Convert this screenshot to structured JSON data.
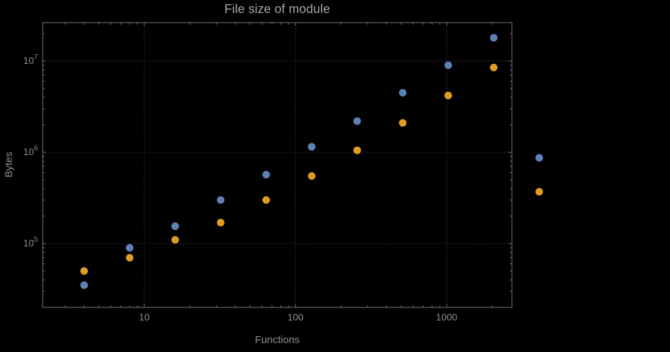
{
  "title": "File size of module",
  "colors": {
    "background": "#000000",
    "frame": "#7a7a7a",
    "grid": "#5f5f5f",
    "tick_label": "#8f8f8f",
    "title_text": "#a9a9a9",
    "series_blue": "#5e81b5",
    "series_orange": "#e19c24"
  },
  "chart_data": {
    "type": "scatter",
    "title": "File size of module",
    "xlabel": "Functions",
    "ylabel": "Bytes",
    "x_scale": "log",
    "y_scale": "log",
    "xlim": [
      2.1,
      2700
    ],
    "ylim": [
      19000,
      30000000
    ],
    "grid": "dotted",
    "legend": "none",
    "x_tick_labels": [
      "10",
      "100",
      "1000"
    ],
    "x_ticks": [
      10,
      100,
      1000
    ],
    "y_ticks": [
      100000,
      1000000,
      10000000
    ],
    "y_tick_exponents": [
      5,
      6,
      7
    ],
    "series": [
      {
        "name": "blue-series",
        "color": "#5e81b5",
        "points": [
          [
            4,
            35000
          ],
          [
            8,
            90000
          ],
          [
            16,
            155000
          ],
          [
            32,
            300000
          ],
          [
            64,
            570000
          ],
          [
            128,
            1150000
          ],
          [
            256,
            2200000
          ],
          [
            512,
            4500000
          ],
          [
            1024,
            9000000
          ],
          [
            2048,
            18000000
          ],
          [
            4096,
            870000
          ]
        ]
      },
      {
        "name": "orange-series",
        "color": "#e19c24",
        "points": [
          [
            4,
            50000
          ],
          [
            8,
            70000
          ],
          [
            16,
            110000
          ],
          [
            32,
            170000
          ],
          [
            64,
            300000
          ],
          [
            128,
            550000
          ],
          [
            256,
            1050000
          ],
          [
            512,
            2100000
          ],
          [
            1024,
            4200000
          ],
          [
            2048,
            8500000
          ],
          [
            4096,
            370000
          ]
        ]
      }
    ]
  }
}
